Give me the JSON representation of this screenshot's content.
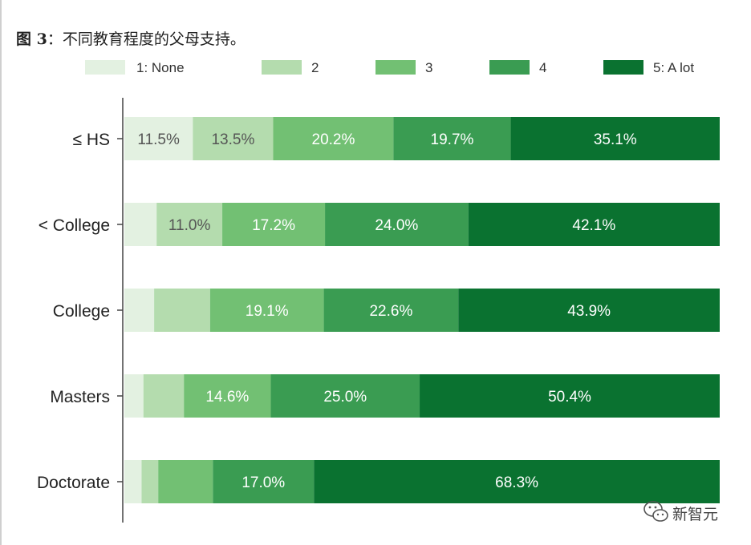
{
  "caption": {
    "fig_num": "图 3",
    "text": "：不同教育程度的父母支持。"
  },
  "watermark": {
    "text": "新智元",
    "icon": "wechat-icon"
  },
  "chart_data": {
    "type": "bar",
    "orientation": "horizontal",
    "stacked": true,
    "normalized": true,
    "categories": [
      "≤ HS",
      "< College",
      "College",
      "Masters",
      "Doctorate"
    ],
    "series": [
      {
        "name": "1: None",
        "color": "#e3f1e1",
        "values": [
          11.5,
          5.4,
          5.0,
          3.2,
          2.9
        ]
      },
      {
        "name": "2",
        "color": "#b4dcae",
        "values": [
          13.5,
          11.0,
          9.4,
          6.8,
          2.8
        ]
      },
      {
        "name": "3",
        "color": "#72c073",
        "values": [
          20.2,
          17.2,
          19.1,
          14.6,
          9.2
        ]
      },
      {
        "name": "4",
        "color": "#3a9c52",
        "values": [
          19.7,
          24.0,
          22.6,
          25.0,
          17.0
        ]
      },
      {
        "name": "5: A lot",
        "color": "#0a7230",
        "values": [
          35.1,
          42.1,
          43.9,
          50.4,
          68.3
        ]
      }
    ],
    "labels": [
      [
        "11.5%",
        "13.5%",
        "20.2%",
        "19.7%",
        "35.1%"
      ],
      [
        "",
        "11.0%",
        "17.2%",
        "24.0%",
        "42.1%"
      ],
      [
        "",
        "",
        "19.1%",
        "22.6%",
        "43.9%"
      ],
      [
        "",
        "",
        "14.6%",
        "25.0%",
        "50.4%"
      ],
      [
        "",
        "",
        "",
        "17.0%",
        "68.3%"
      ]
    ],
    "xlim": [
      0,
      100
    ],
    "legend_position": "top",
    "grid": false
  }
}
